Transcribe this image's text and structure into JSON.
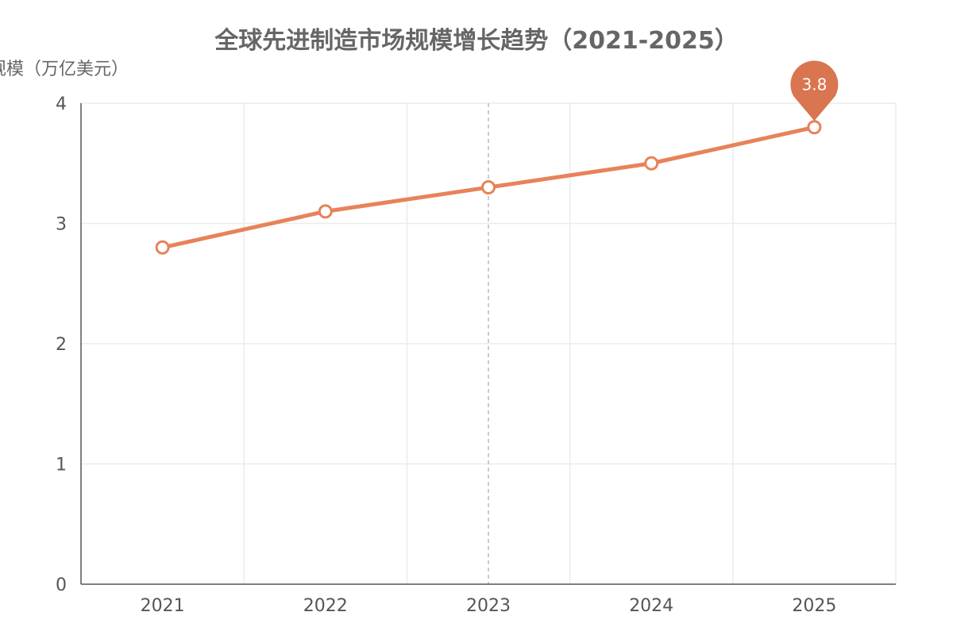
{
  "chart_data": {
    "type": "line",
    "title": "全球先进制造市场规模增长趋势（2021-2025）",
    "xlabel": "",
    "ylabel": "市场规模（万亿美元）",
    "categories": [
      "2021",
      "2022",
      "2023",
      "2024",
      "2025"
    ],
    "series": [
      {
        "name": "市场规模",
        "values": [
          2.8,
          3.1,
          3.3,
          3.5,
          3.8
        ],
        "color": "#e8825a"
      }
    ],
    "ylim": [
      0,
      4
    ],
    "yticks": [
      "0",
      "1",
      "2",
      "3",
      "4"
    ],
    "grid": true,
    "highlight_category": "2023",
    "marker": {
      "category": "2025",
      "value": 3.8,
      "label": "3.8",
      "color": "#d9754f"
    }
  }
}
